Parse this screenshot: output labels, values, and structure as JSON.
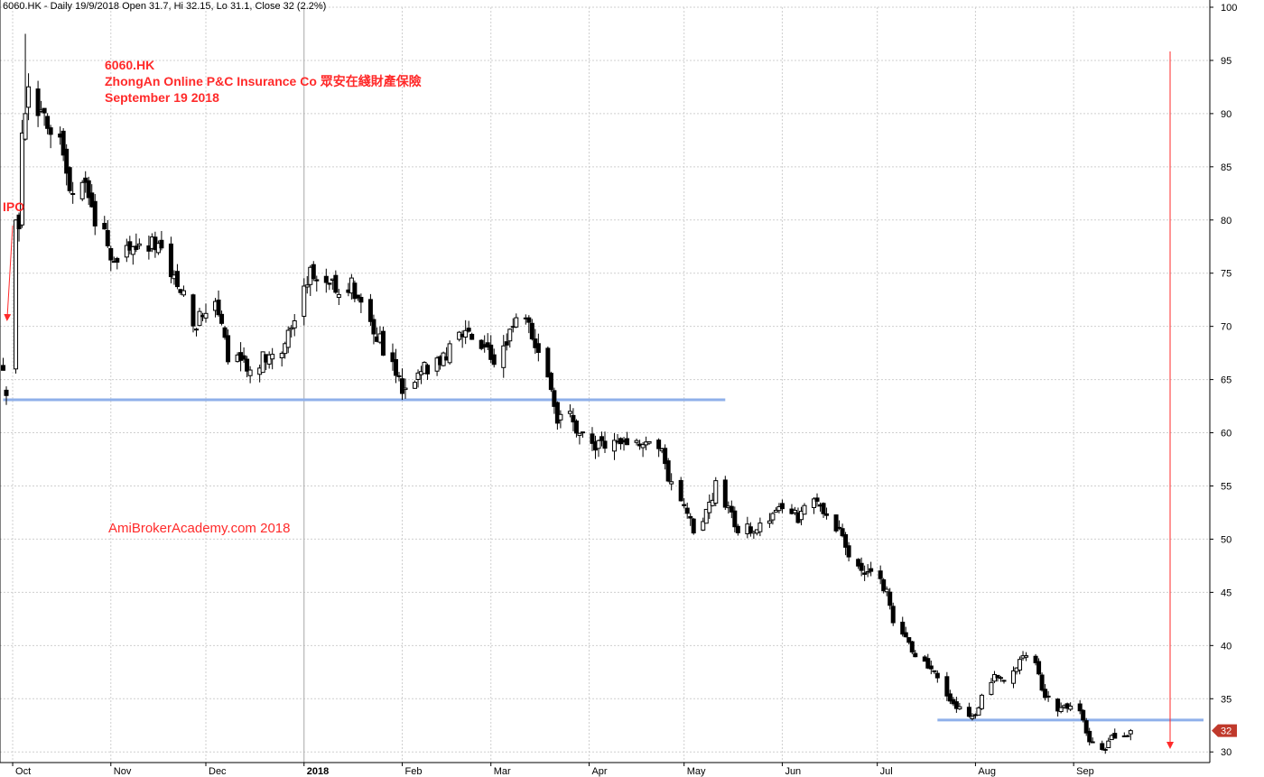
{
  "header": {
    "symbol": "6060.HK",
    "info": "6060.HK - Daily 19/9/2018 Open 31.7, Hi 32.15, Lo 31.1, Close 32 (2.2%)"
  },
  "annotations": {
    "ticker": "6060.HK",
    "company": "ZhongAn Online P&C Insurance Co 眾安在綫財產保險",
    "date": "September 19 2018",
    "watermark": "AmiBrokerAcademy.com   2018",
    "ipo": "IPO"
  },
  "colors": {
    "annotation": "#ff2a2a",
    "support_line": "#8fb0ea",
    "price_badge": "#c0392b",
    "grid": "#cfcfcf",
    "candle": "#000000"
  },
  "chart_data": {
    "type": "candlestick",
    "symbol": "6060.HK",
    "interval": "Daily",
    "last_bar": {
      "date": "19/9/2018",
      "open": 31.7,
      "high": 32.15,
      "low": 31.1,
      "close": 32,
      "change_pct": "2.2%"
    },
    "ylim": [
      29,
      100
    ],
    "y_ticks": [
      30,
      35,
      40,
      45,
      50,
      55,
      60,
      65,
      70,
      75,
      80,
      85,
      90,
      95,
      100
    ],
    "x_ticks": [
      "Oct",
      "Nov",
      "Dec",
      "2018",
      "Feb",
      "Mar",
      "Apr",
      "May",
      "Jun",
      "Jul",
      "Aug",
      "Sep"
    ],
    "last_price_label": "32",
    "support_lines": [
      {
        "value": 63.1,
        "from": "2017-09-28",
        "to": "2018-05-14"
      },
      {
        "value": 33.0,
        "from": "2018-07-20",
        "to": "2018-10-12"
      }
    ],
    "waypoints": [
      [
        "2017-09-28",
        66
      ],
      [
        "2017-09-29",
        64
      ],
      [
        "2017-10-03",
        80
      ],
      [
        "2017-10-04",
        88
      ],
      [
        "2017-10-06",
        92
      ],
      [
        "2017-10-09",
        90
      ],
      [
        "2017-10-12",
        89
      ],
      [
        "2017-10-16",
        88
      ],
      [
        "2017-10-18",
        85
      ],
      [
        "2017-10-20",
        82
      ],
      [
        "2017-10-24",
        83
      ],
      [
        "2017-10-27",
        80
      ],
      [
        "2017-10-31",
        78
      ],
      [
        "2017-11-02",
        76
      ],
      [
        "2017-11-06",
        78
      ],
      [
        "2017-11-10",
        77
      ],
      [
        "2017-11-14",
        78
      ],
      [
        "2017-11-17",
        77
      ],
      [
        "2017-11-21",
        75
      ],
      [
        "2017-11-24",
        73
      ],
      [
        "2017-11-27",
        70
      ],
      [
        "2017-11-30",
        71
      ],
      [
        "2017-12-04",
        72
      ],
      [
        "2017-12-06",
        71
      ],
      [
        "2017-12-08",
        66
      ],
      [
        "2017-12-12",
        67
      ],
      [
        "2017-12-15",
        66
      ],
      [
        "2017-12-19",
        67
      ],
      [
        "2017-12-22",
        67
      ],
      [
        "2017-12-27",
        69
      ],
      [
        "2017-12-29",
        71
      ],
      [
        "2018-01-03",
        75
      ],
      [
        "2018-01-05",
        75
      ],
      [
        "2018-01-09",
        74
      ],
      [
        "2018-01-12",
        73
      ],
      [
        "2018-01-16",
        74
      ],
      [
        "2018-01-19",
        72
      ],
      [
        "2018-01-23",
        70
      ],
      [
        "2018-01-26",
        68
      ],
      [
        "2018-01-30",
        66
      ],
      [
        "2018-02-01",
        64
      ],
      [
        "2018-02-05",
        65
      ],
      [
        "2018-02-08",
        66
      ],
      [
        "2018-02-13",
        67
      ],
      [
        "2018-02-20",
        69
      ],
      [
        "2018-02-23",
        69
      ],
      [
        "2018-02-27",
        68
      ],
      [
        "2018-03-02",
        67
      ],
      [
        "2018-03-06",
        69
      ],
      [
        "2018-03-09",
        71
      ],
      [
        "2018-03-13",
        70
      ],
      [
        "2018-03-16",
        68
      ],
      [
        "2018-03-20",
        64
      ],
      [
        "2018-03-22",
        61
      ],
      [
        "2018-03-26",
        62
      ],
      [
        "2018-03-28",
        60
      ],
      [
        "2018-04-03",
        59
      ],
      [
        "2018-04-09",
        59
      ],
      [
        "2018-04-13",
        59
      ],
      [
        "2018-04-18",
        59
      ],
      [
        "2018-04-23",
        59
      ],
      [
        "2018-04-26",
        56
      ],
      [
        "2018-04-30",
        54
      ],
      [
        "2018-05-04",
        51
      ],
      [
        "2018-05-09",
        53
      ],
      [
        "2018-05-11",
        55
      ],
      [
        "2018-05-15",
        53
      ],
      [
        "2018-05-18",
        51
      ],
      [
        "2018-05-24",
        51
      ],
      [
        "2018-05-29",
        52
      ],
      [
        "2018-06-01",
        53
      ],
      [
        "2018-06-06",
        52
      ],
      [
        "2018-06-11",
        54
      ],
      [
        "2018-06-14",
        52
      ],
      [
        "2018-06-19",
        51
      ],
      [
        "2018-06-21",
        49
      ],
      [
        "2018-06-26",
        47
      ],
      [
        "2018-06-29",
        47
      ],
      [
        "2018-07-04",
        45
      ],
      [
        "2018-07-06",
        42
      ],
      [
        "2018-07-10",
        41
      ],
      [
        "2018-07-13",
        39
      ],
      [
        "2018-07-18",
        38
      ],
      [
        "2018-07-23",
        35
      ],
      [
        "2018-07-27",
        34
      ],
      [
        "2018-07-31",
        33
      ],
      [
        "2018-08-03",
        35
      ],
      [
        "2018-08-07",
        37
      ],
      [
        "2018-08-10",
        37
      ],
      [
        "2018-08-14",
        38
      ],
      [
        "2018-08-16",
        39
      ],
      [
        "2018-08-20",
        38
      ],
      [
        "2018-08-23",
        35
      ],
      [
        "2018-08-28",
        34
      ],
      [
        "2018-09-03",
        34
      ],
      [
        "2018-09-06",
        31
      ],
      [
        "2018-09-10",
        30
      ],
      [
        "2018-09-13",
        31.5
      ],
      [
        "2018-09-17",
        31.4
      ],
      [
        "2018-09-19",
        32
      ]
    ]
  }
}
